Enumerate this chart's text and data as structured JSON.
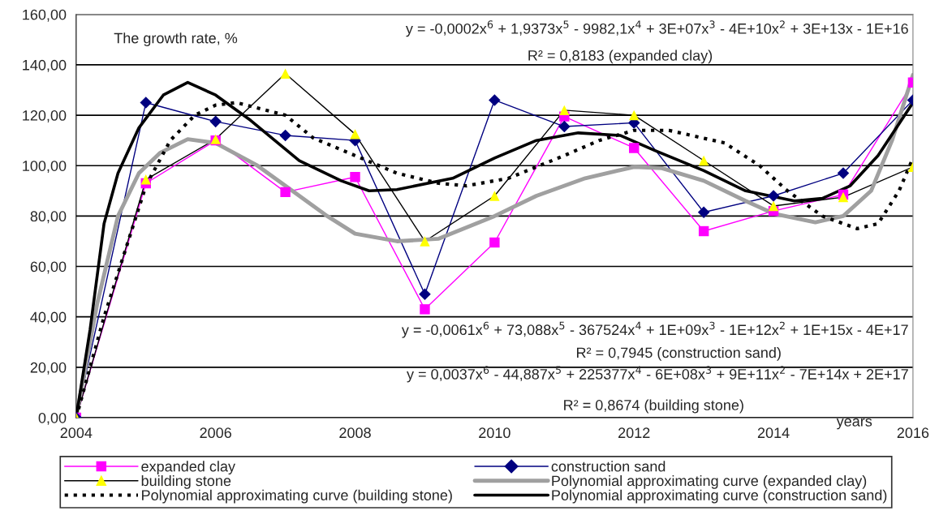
{
  "chart_data": {
    "type": "line",
    "annotations": [
      "The growth rate, %",
      "y = -0,0002x$^{6}$ + 1,9373x$^{5}$ - 9982,1x$^{4}$ + 3E+07x$^{3}$ - 4E+10x$^{2}$ + 3E+13x - 1E+16",
      "R² = 0,8183 (expanded clay)",
      "y = -0,0061x$^{6}$ + 73,088x$^{5}$ - 367524x$^{4}$ + 1E+09x$^{3}$ - 1E+12x$^{2}$ + 1E+15x - 4E+17",
      "R² = 0,7945 (construction sand)",
      "y = 0,0037x$^{6}$ - 44,887x$^{5}$ + 225377x$^{4}$ - 6E+08x$^{3}$ + 9E+11x$^{2}$ - 7E+14x + 2E+17",
      "R² = 0,8674 (building stone)"
    ],
    "xlabel": "years",
    "x": [
      2004,
      2005,
      2006,
      2007,
      2008,
      2009,
      2010,
      2011,
      2012,
      2013,
      2014,
      2015,
      2016
    ],
    "series": [
      {
        "name": "expanded clay",
        "color": "#ff00ff",
        "marker": "square",
        "line_style": "solid",
        "values": [
          0,
          93,
          110,
          89.5,
          95.5,
          43,
          69.5,
          119.5,
          107,
          74,
          82,
          88.5,
          133
        ]
      },
      {
        "name": "construction sand",
        "color": "#000080",
        "marker": "diamond",
        "line_style": "solid",
        "values": [
          0,
          125,
          117.5,
          112,
          110,
          49,
          126,
          115.5,
          117,
          81.5,
          88,
          97,
          126
        ]
      },
      {
        "name": "building stone",
        "color": "#000000",
        "colors": [
          "#ffff00",
          "#ffff00",
          "#ffff00",
          "#ffff00",
          "#ffff00",
          "#ffff00",
          "#ffff00",
          "#ffff00",
          "#ffff00",
          "#ffff00",
          "#ffff00",
          "#ffff00",
          "#ffff00"
        ],
        "marker": "triangle",
        "line_style": "solid",
        "values": [
          0,
          94.5,
          110.5,
          136.5,
          112.5,
          70,
          88,
          122,
          120,
          102,
          84,
          87.5,
          99.5
        ]
      },
      {
        "name": "Polynomial approximating curve (expanded clay)",
        "color": "#a0a0a0",
        "marker": "none",
        "line_style": "solid",
        "x": [
          2004,
          2004.3,
          2004.6,
          2004.9,
          2005.2,
          2005.6,
          2006,
          2006.6,
          2007.1,
          2007.6,
          2008,
          2008.6,
          2009.2,
          2010,
          2010.6,
          2011.3,
          2012,
          2012.4,
          2013,
          2013.6,
          2014,
          2014.6,
          2015,
          2015.4,
          2015.7,
          2016
        ],
        "values": [
          0,
          45,
          80,
          97,
          105,
          110.5,
          109,
          100,
          90,
          80,
          73,
          70,
          71,
          80,
          88,
          95,
          99.5,
          99,
          94,
          86,
          81,
          77.5,
          80,
          90,
          110,
          136
        ]
      },
      {
        "name": "Polynomial approximating curve (building stone)",
        "color": "#000000",
        "marker": "none",
        "line_style": "dotted",
        "x": [
          2004,
          2004.4,
          2005,
          2005.35,
          2005.7,
          2006,
          2006.3,
          2007,
          2007.4,
          2008,
          2008.6,
          2009.2,
          2009.6,
          2010.2,
          2011,
          2011.5,
          2012,
          2012.5,
          2013.3,
          2013.8,
          2014.2,
          2014.7,
          2015.2,
          2015.5,
          2015.8,
          2016
        ],
        "values": [
          0,
          40,
          92,
          110,
          120,
          124,
          125,
          120,
          111,
          104,
          97,
          93,
          92,
          95,
          104,
          110,
          114,
          114,
          109,
          100,
          90,
          80,
          75,
          77,
          90,
          103
        ]
      },
      {
        "name": "Polynomial approximating curve (construction sand)",
        "color": "#000000",
        "marker": "none",
        "line_style": "solid",
        "x": [
          2004,
          2004.2,
          2004.4,
          2004.6,
          2004.9,
          2005.25,
          2005.6,
          2006,
          2006.5,
          2007.2,
          2007.8,
          2008.2,
          2008.6,
          2009.4,
          2010,
          2010.6,
          2011.2,
          2011.8,
          2012.3,
          2013,
          2013.6,
          2014.3,
          2014.7,
          2015.1,
          2015.5,
          2016
        ],
        "values": [
          0,
          35,
          77,
          97,
          115,
          128,
          133,
          128,
          118,
          102,
          94,
          90,
          90.5,
          95,
          103,
          110,
          113,
          112,
          106,
          98,
          90,
          86,
          87,
          92,
          104,
          125
        ]
      }
    ],
    "xlim": [
      2004,
      2016
    ],
    "xticks": [
      2004,
      2006,
      2008,
      2010,
      2012,
      2014,
      2016
    ],
    "ylim": [
      0,
      160
    ],
    "yticks": [
      {
        "value": 0,
        "label": "0,00"
      },
      {
        "value": 20,
        "label": "20,00"
      },
      {
        "value": 40,
        "label": "40,00"
      },
      {
        "value": 60,
        "label": "60,00"
      },
      {
        "value": 80,
        "label": "80,00"
      },
      {
        "value": 100,
        "label": "100,00"
      },
      {
        "value": 120,
        "label": "120,00"
      },
      {
        "value": 140,
        "label": "140,00"
      },
      {
        "value": 160,
        "label": "160,00"
      }
    ],
    "grid": "y",
    "legend": "bottom"
  }
}
